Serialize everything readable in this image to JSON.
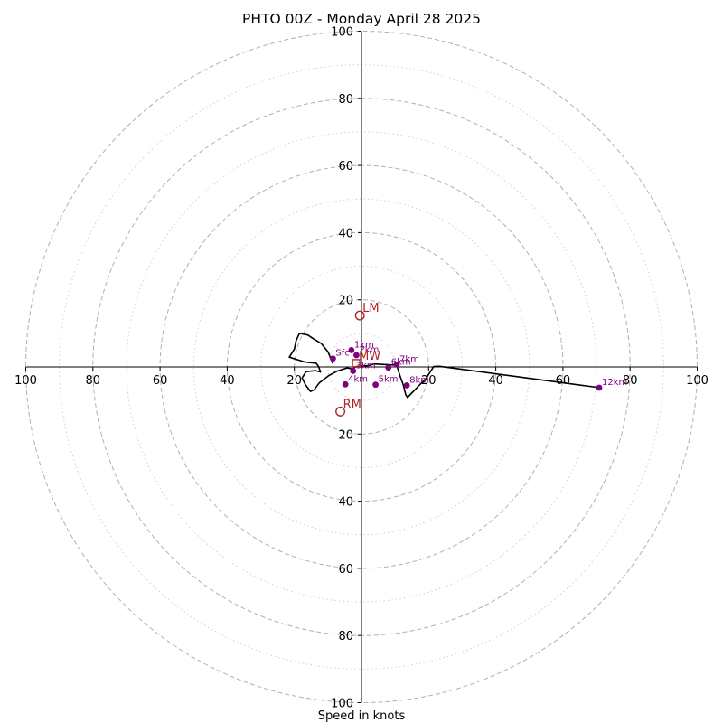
{
  "chart_data": {
    "type": "hodograph",
    "title": "PHTO 00Z - Monday April 28 2025",
    "xlabel": "Speed in knots",
    "units": "knots",
    "range": [
      -100,
      100
    ],
    "ring_major": [
      20,
      40,
      60,
      80,
      100
    ],
    "ring_minor": [
      10,
      30,
      50,
      70,
      90
    ],
    "x_tick_labels": [
      "100",
      "80",
      "60",
      "40",
      "20",
      "20",
      "40",
      "60",
      "80",
      "100"
    ],
    "y_tick_labels": [
      "100",
      "80",
      "60",
      "40",
      "20",
      "20",
      "40",
      "60",
      "80",
      "100"
    ],
    "grid": true,
    "colors": {
      "trace": "#000000",
      "height_points": "#800080",
      "motion": "#b22222",
      "rings": "#b0b0b0",
      "axes": "#000000"
    },
    "hodograph_uv": [
      [
        -8.5,
        1.0
      ],
      [
        -10,
        4.5
      ],
      [
        -12,
        7
      ],
      [
        -14.5,
        8.5
      ],
      [
        -16,
        9.5
      ],
      [
        -18.5,
        10
      ],
      [
        -19.5,
        7.8
      ],
      [
        -20,
        5.3
      ],
      [
        -21.5,
        2.9
      ],
      [
        -17,
        1.5
      ],
      [
        -13.5,
        1.1
      ],
      [
        -12.8,
        0.2
      ],
      [
        -12.2,
        -1.5
      ],
      [
        -13.7,
        -1.1
      ],
      [
        -16.5,
        -1.4
      ],
      [
        -17.7,
        -3.3
      ],
      [
        -16.6,
        -5.4
      ],
      [
        -15.2,
        -7.3
      ],
      [
        -14.1,
        -6.8
      ],
      [
        -12.6,
        -4.8
      ],
      [
        -9.8,
        -2.6
      ],
      [
        -7.2,
        -1.2
      ],
      [
        -4.3,
        -0.3
      ],
      [
        -2.8,
        -0.6
      ],
      [
        -1.5,
        0.1
      ],
      [
        0.7,
        0.3
      ],
      [
        2.2,
        0.4
      ],
      [
        3.7,
        0.9
      ],
      [
        10.5,
        0.5
      ],
      [
        11.4,
        -2.5
      ],
      [
        12.5,
        -5.5
      ],
      [
        13.2,
        -8.3
      ],
      [
        13.7,
        -9.1
      ],
      [
        19.3,
        -3.3
      ],
      [
        21.5,
        0.1
      ],
      [
        23.2,
        0.2
      ],
      [
        71,
        -6.2
      ]
    ],
    "height_markers": [
      {
        "label": "Sfc",
        "u": -8.5,
        "v": 2.5
      },
      {
        "label": "1km",
        "u": -3,
        "v": 5
      },
      {
        "label": "2km",
        "u": -1.5,
        "v": 3.5
      },
      {
        "label": "3km",
        "u": -2.5,
        "v": -1.2
      },
      {
        "label": "4km",
        "u": -4.8,
        "v": -5.2
      },
      {
        "label": "5km",
        "u": 4.2,
        "v": -5.3
      },
      {
        "label": "6km",
        "u": 8,
        "v": -0.2
      },
      {
        "label": "7km",
        "u": 10.5,
        "v": 0.7
      },
      {
        "label": "8km",
        "u": 13.5,
        "v": -5.5
      },
      {
        "label": "12km",
        "u": 70.8,
        "v": -6.2
      }
    ],
    "storm_motion": [
      {
        "label": "LM",
        "u": -0.5,
        "v": 15.3,
        "marker": "circle"
      },
      {
        "label": "RM",
        "u": -6.3,
        "v": -13.3,
        "marker": "circle"
      },
      {
        "label": "MW",
        "u": -1.6,
        "v": 1.1,
        "marker": "square"
      }
    ]
  }
}
